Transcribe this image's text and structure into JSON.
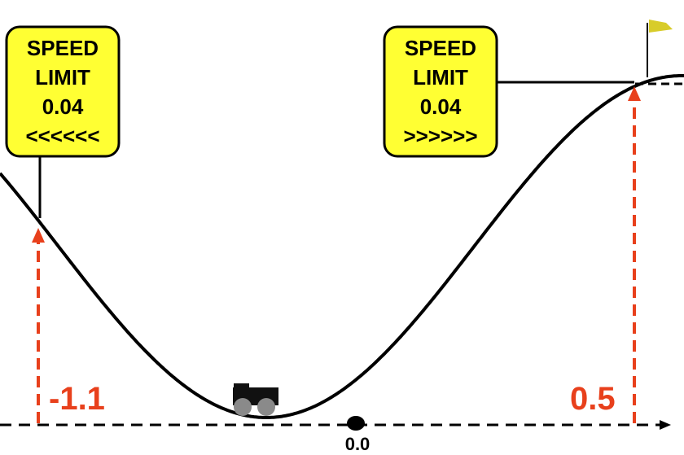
{
  "colors": {
    "curve": "#000000",
    "marker": "#e8401c",
    "sign_fill": "#ffff33",
    "sign_stroke": "#000000",
    "flag": "#d8cc2a",
    "car_body": "#111111",
    "car_wheel": "#8a8a8a"
  },
  "left_sign": {
    "line1": "SPEED",
    "line2": "LIMIT",
    "line3": "0.04",
    "line4": "<<<<<<"
  },
  "right_sign": {
    "line1": "SPEED",
    "line2": "LIMIT",
    "line3": "0.04",
    "line4": ">>>>>>"
  },
  "left_marker_label": "-1.1",
  "right_marker_label": "0.5",
  "origin_label": "0.0",
  "icons": {
    "car": "car-icon",
    "flag": "goal-flag-icon",
    "origin": "origin-dot-icon"
  }
}
